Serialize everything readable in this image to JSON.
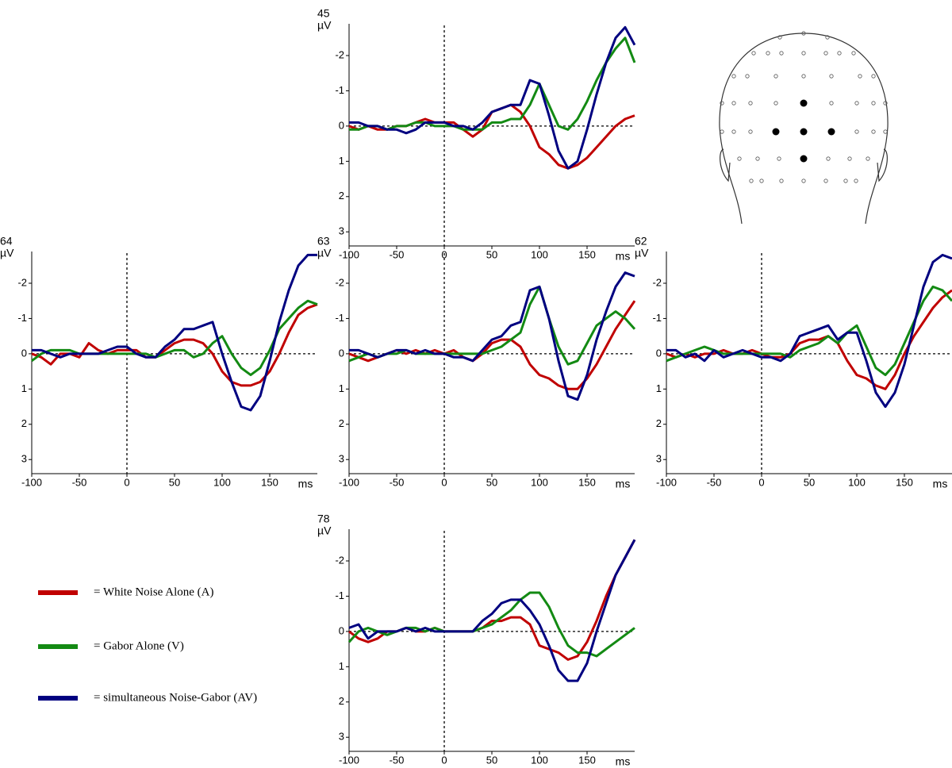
{
  "chart_data": [
    {
      "type": "line",
      "title": "45",
      "y_label": "µV",
      "x_label": "ms",
      "xlim": [
        -100,
        200
      ],
      "ylim": [
        -2.9,
        3.4
      ],
      "xticks": [
        -100,
        -50,
        0,
        50,
        100,
        150
      ],
      "yticks": [
        -2,
        -1,
        0,
        1,
        2,
        3
      ],
      "x": [
        -100,
        -90,
        -80,
        -70,
        -60,
        -50,
        -40,
        -30,
        -20,
        -10,
        0,
        10,
        20,
        30,
        40,
        50,
        60,
        70,
        80,
        90,
        100,
        110,
        120,
        130,
        140,
        150,
        160,
        170,
        180,
        190,
        200
      ],
      "series": [
        {
          "name": "= White Noise Alone (A)",
          "color": "#c00000",
          "values": [
            0,
            0.1,
            0,
            0.1,
            0.1,
            0,
            0,
            -0.1,
            -0.2,
            -0.1,
            -0.1,
            -0.1,
            0.1,
            0.3,
            0.1,
            -0.4,
            -0.5,
            -0.6,
            -0.4,
            0,
            0.6,
            0.8,
            1.1,
            1.2,
            1.1,
            0.9,
            0.6,
            0.3,
            0,
            -0.2,
            -0.3
          ]
        },
        {
          "name": "= Gabor Alone (V)",
          "color": "#138a13",
          "values": [
            0.1,
            0.1,
            0,
            0,
            0.1,
            0,
            0,
            -0.1,
            -0.1,
            0,
            0,
            0,
            0.1,
            0.1,
            0.1,
            -0.1,
            -0.1,
            -0.2,
            -0.2,
            -0.6,
            -1.2,
            -0.6,
            0,
            0.1,
            -0.2,
            -0.7,
            -1.3,
            -1.8,
            -2.2,
            -2.5,
            -1.8
          ]
        },
        {
          "name": "= simultaneous Noise-Gabor (AV)",
          "color": "#000080",
          "values": [
            -0.1,
            -0.1,
            0,
            0,
            0.1,
            0.1,
            0.2,
            0.1,
            -0.1,
            -0.1,
            -0.1,
            0,
            0,
            0.1,
            -0.1,
            -0.4,
            -0.5,
            -0.6,
            -0.6,
            -1.3,
            -1.2,
            -0.3,
            0.7,
            1.2,
            1.0,
            0.1,
            -0.9,
            -1.8,
            -2.5,
            -2.8,
            -2.3
          ]
        }
      ]
    },
    {
      "type": "line",
      "title": "64",
      "y_label": "µV",
      "x_label": "ms",
      "xlim": [
        -100,
        200
      ],
      "ylim": [
        -2.9,
        3.4
      ],
      "xticks": [
        -100,
        -50,
        0,
        50,
        100,
        150
      ],
      "yticks": [
        -2,
        -1,
        0,
        1,
        2,
        3
      ],
      "x": [
        -100,
        -90,
        -80,
        -70,
        -60,
        -50,
        -40,
        -30,
        -20,
        -10,
        0,
        10,
        20,
        30,
        40,
        50,
        60,
        70,
        80,
        90,
        100,
        110,
        120,
        130,
        140,
        150,
        160,
        170,
        180,
        190,
        200
      ],
      "series": [
        {
          "color": "#c00000",
          "values": [
            0,
            0.1,
            0.3,
            0,
            0,
            0.1,
            -0.3,
            -0.1,
            0,
            -0.1,
            -0.1,
            -0.1,
            0.1,
            0.1,
            -0.1,
            -0.3,
            -0.4,
            -0.4,
            -0.3,
            0,
            0.5,
            0.8,
            0.9,
            0.9,
            0.8,
            0.5,
            0,
            -0.6,
            -1.1,
            -1.3,
            -1.4
          ]
        },
        {
          "color": "#138a13",
          "values": [
            0.2,
            0,
            -0.1,
            -0.1,
            -0.1,
            0,
            0,
            0,
            0,
            0,
            0,
            0,
            0,
            0.1,
            0,
            -0.1,
            -0.1,
            0.1,
            0,
            -0.3,
            -0.5,
            0,
            0.4,
            0.6,
            0.4,
            -0.1,
            -0.7,
            -1.0,
            -1.3,
            -1.5,
            -1.4
          ]
        },
        {
          "color": "#000080",
          "values": [
            -0.1,
            -0.1,
            0,
            0.1,
            0,
            0,
            0,
            0,
            -0.1,
            -0.2,
            -0.2,
            0,
            0.1,
            0.1,
            -0.2,
            -0.4,
            -0.7,
            -0.7,
            -0.8,
            -0.9,
            0,
            0.8,
            1.5,
            1.6,
            1.2,
            0.2,
            -0.9,
            -1.8,
            -2.5,
            -2.8,
            -2.8
          ]
        }
      ]
    },
    {
      "type": "line",
      "title": "63",
      "y_label": "µV",
      "x_label": "ms",
      "xlim": [
        -100,
        200
      ],
      "ylim": [
        -2.9,
        3.4
      ],
      "xticks": [
        -100,
        -50,
        0,
        50,
        100,
        150
      ],
      "yticks": [
        -2,
        -1,
        0,
        1,
        2,
        3
      ],
      "x": [
        -100,
        -90,
        -80,
        -70,
        -60,
        -50,
        -40,
        -30,
        -20,
        -10,
        0,
        10,
        20,
        30,
        40,
        50,
        60,
        70,
        80,
        90,
        100,
        110,
        120,
        130,
        140,
        150,
        160,
        170,
        180,
        190,
        200
      ],
      "series": [
        {
          "color": "#c00000",
          "values": [
            0,
            0.1,
            0.2,
            0.1,
            0,
            -0.1,
            0,
            -0.1,
            0,
            -0.1,
            0,
            -0.1,
            0.1,
            0.2,
            0,
            -0.3,
            -0.4,
            -0.4,
            -0.2,
            0.3,
            0.6,
            0.7,
            0.9,
            1.0,
            1.0,
            0.7,
            0.3,
            -0.2,
            -0.7,
            -1.1,
            -1.5
          ]
        },
        {
          "color": "#138a13",
          "values": [
            0.2,
            0.1,
            0,
            0.1,
            0,
            0,
            -0.1,
            0,
            0,
            0,
            0,
            0,
            0,
            0,
            0,
            -0.1,
            -0.2,
            -0.4,
            -0.6,
            -1.4,
            -1.9,
            -1.0,
            -0.2,
            0.3,
            0.2,
            -0.3,
            -0.8,
            -1.0,
            -1.2,
            -1.0,
            -0.7
          ]
        },
        {
          "color": "#000080",
          "values": [
            -0.1,
            -0.1,
            0,
            0.1,
            0,
            -0.1,
            -0.1,
            0,
            -0.1,
            0,
            0,
            0.1,
            0.1,
            0.2,
            -0.1,
            -0.4,
            -0.5,
            -0.8,
            -0.9,
            -1.8,
            -1.9,
            -1.0,
            0.2,
            1.2,
            1.3,
            0.6,
            -0.4,
            -1.2,
            -1.9,
            -2.3,
            -2.2
          ]
        }
      ]
    },
    {
      "type": "line",
      "title": "62",
      "y_label": "µV",
      "x_label": "ms",
      "xlim": [
        -100,
        200
      ],
      "ylim": [
        -2.9,
        3.4
      ],
      "xticks": [
        -100,
        -50,
        0,
        50,
        100,
        150
      ],
      "yticks": [
        -2,
        -1,
        0,
        1,
        2,
        3
      ],
      "x": [
        -100,
        -90,
        -80,
        -70,
        -60,
        -50,
        -40,
        -30,
        -20,
        -10,
        0,
        10,
        20,
        30,
        40,
        50,
        60,
        70,
        80,
        90,
        100,
        110,
        120,
        130,
        140,
        150,
        160,
        170,
        180,
        190,
        200
      ],
      "series": [
        {
          "color": "#c00000",
          "values": [
            0,
            0.1,
            0,
            0.1,
            0,
            0,
            -0.1,
            0,
            0,
            -0.1,
            0,
            0.1,
            0.1,
            0,
            -0.3,
            -0.4,
            -0.4,
            -0.5,
            -0.3,
            0.2,
            0.6,
            0.7,
            0.9,
            1.0,
            0.6,
            0,
            -0.5,
            -0.9,
            -1.3,
            -1.6,
            -1.8
          ]
        },
        {
          "color": "#138a13",
          "values": [
            0.2,
            0.1,
            0,
            -0.1,
            -0.2,
            -0.1,
            0,
            0,
            0,
            0,
            0,
            0,
            0,
            0.1,
            -0.1,
            -0.2,
            -0.3,
            -0.5,
            -0.3,
            -0.6,
            -0.8,
            -0.2,
            0.4,
            0.6,
            0.3,
            -0.3,
            -0.9,
            -1.5,
            -1.9,
            -1.8,
            -1.5
          ]
        },
        {
          "color": "#000080",
          "values": [
            -0.1,
            -0.1,
            0.1,
            0,
            0.2,
            -0.1,
            0.1,
            0,
            -0.1,
            0,
            0.1,
            0.1,
            0.2,
            0,
            -0.5,
            -0.6,
            -0.7,
            -0.8,
            -0.4,
            -0.6,
            -0.6,
            0.2,
            1.1,
            1.5,
            1.1,
            0.3,
            -0.8,
            -1.9,
            -2.6,
            -2.8,
            -2.7
          ]
        }
      ]
    },
    {
      "type": "line",
      "title": "78",
      "y_label": "µV",
      "x_label": "ms",
      "xlim": [
        -100,
        200
      ],
      "ylim": [
        -2.9,
        3.4
      ],
      "xticks": [
        -100,
        -50,
        0,
        50,
        100,
        150
      ],
      "yticks": [
        -2,
        -1,
        0,
        1,
        2,
        3
      ],
      "x": [
        -100,
        -90,
        -80,
        -70,
        -60,
        -50,
        -40,
        -30,
        -20,
        -10,
        0,
        10,
        20,
        30,
        40,
        50,
        60,
        70,
        80,
        90,
        100,
        110,
        120,
        130,
        140,
        150,
        160,
        170,
        180,
        190,
        200
      ],
      "series": [
        {
          "color": "#c00000",
          "values": [
            0,
            0.2,
            0.3,
            0.2,
            0,
            0,
            -0.1,
            0,
            0,
            -0.1,
            0,
            0,
            0,
            0,
            -0.1,
            -0.3,
            -0.3,
            -0.4,
            -0.4,
            -0.2,
            0.4,
            0.5,
            0.6,
            0.8,
            0.7,
            0.3,
            -0.3,
            -1.0,
            -1.6,
            -2.1,
            -2.6
          ]
        },
        {
          "color": "#138a13",
          "values": [
            0.3,
            0,
            -0.1,
            0,
            0.1,
            0,
            -0.1,
            -0.1,
            0,
            -0.1,
            0,
            0,
            0,
            0,
            -0.1,
            -0.2,
            -0.4,
            -0.6,
            -0.9,
            -1.1,
            -1.1,
            -0.7,
            -0.1,
            0.4,
            0.6,
            0.6,
            0.7,
            0.5,
            0.3,
            0.1,
            -0.1
          ]
        },
        {
          "color": "#000080",
          "values": [
            -0.1,
            -0.2,
            0.2,
            0,
            0,
            0,
            -0.1,
            0,
            -0.1,
            0,
            0,
            0,
            0,
            0,
            -0.3,
            -0.5,
            -0.8,
            -0.9,
            -0.9,
            -0.6,
            -0.2,
            0.4,
            1.1,
            1.4,
            1.4,
            0.9,
            0,
            -0.8,
            -1.6,
            -2.1,
            -2.6
          ]
        }
      ]
    }
  ]
}
